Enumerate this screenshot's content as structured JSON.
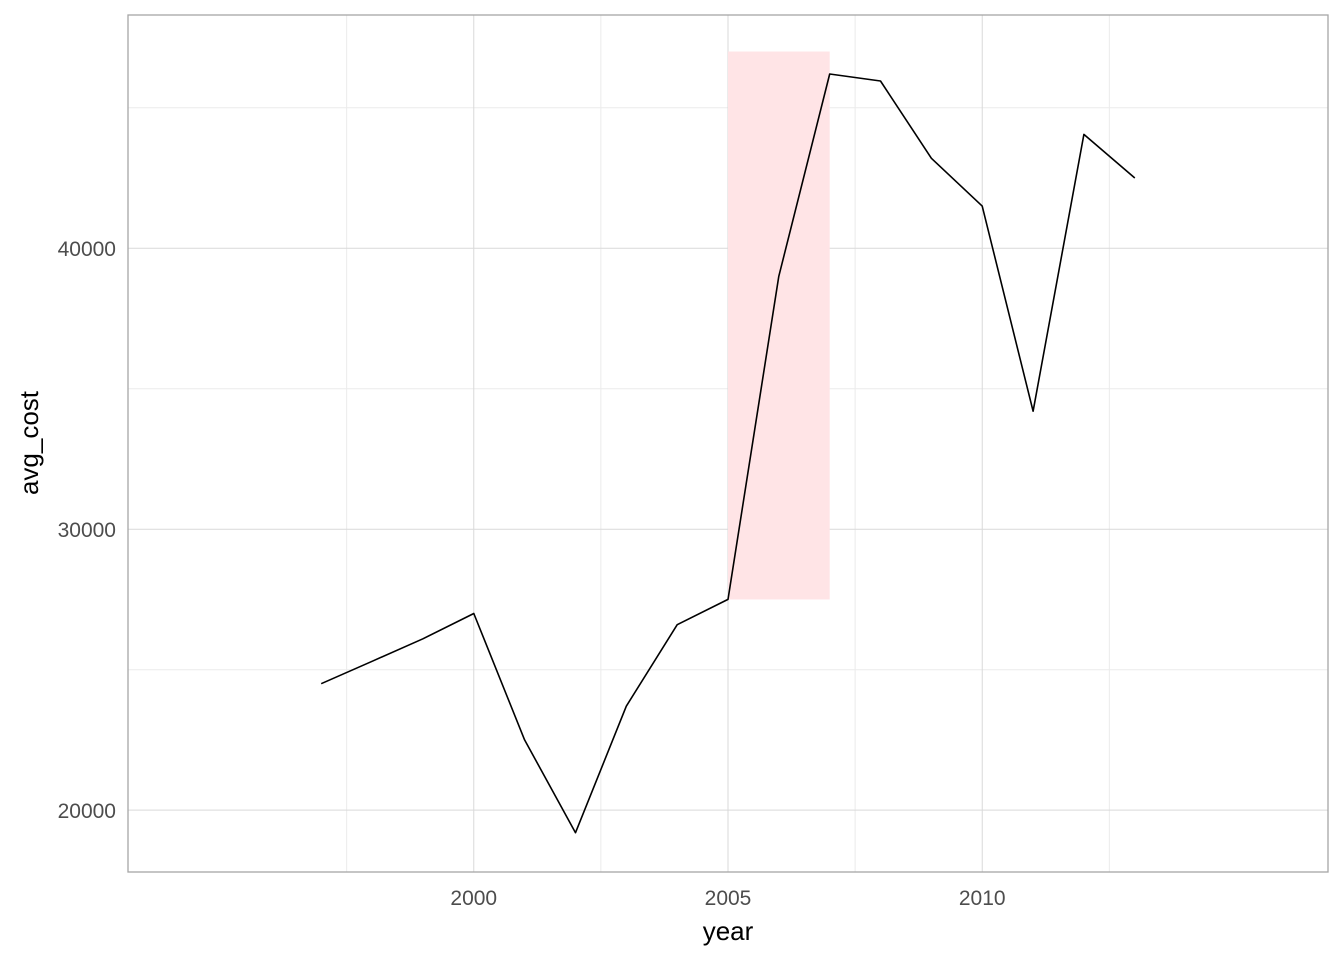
{
  "chart_data": {
    "type": "line",
    "title": "",
    "xlabel": "year",
    "ylabel": "avg_cost",
    "x": [
      1997,
      1998,
      1999,
      2000,
      2001,
      2002,
      2003,
      2004,
      2005,
      2006,
      2007,
      2008,
      2009,
      2010,
      2011,
      2012,
      2013
    ],
    "series": [
      {
        "values": [
          24500,
          25300,
          26100,
          27000,
          22500,
          19200,
          23700,
          26600,
          27500,
          39000,
          46200,
          45950,
          43200,
          41500,
          34200,
          44050,
          42500
        ]
      }
    ],
    "xlim": [
      1993.2,
      2016.8
    ],
    "ylim": [
      17800,
      48300
    ],
    "x_ticks": [
      2000,
      2005,
      2010
    ],
    "x_tick_labels": [
      "2000",
      "2005",
      "2010"
    ],
    "y_ticks": [
      20000,
      30000,
      40000
    ],
    "y_tick_labels": [
      "20000",
      "30000",
      "40000"
    ],
    "highlight": {
      "x_range": [
        2005,
        2007
      ],
      "y_range": [
        27500,
        47000
      ],
      "color": "#ffe4e6"
    },
    "grid": true,
    "legend": "none",
    "colors": {
      "line": "#000000",
      "highlight": "#ffe4e6",
      "grid_major": "#d9d9d9",
      "grid_minor": "#ebebeb",
      "border": "#a6a6a6"
    }
  }
}
